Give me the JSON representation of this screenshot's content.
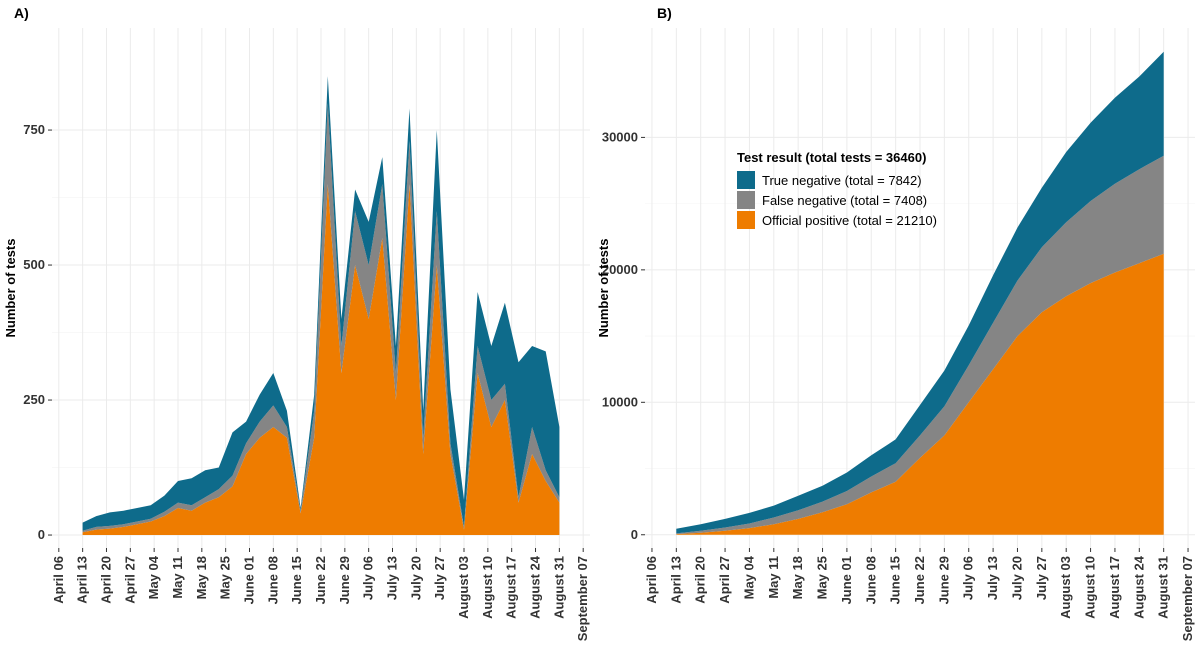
{
  "chart_data": [
    {
      "type": "area",
      "stacked": true,
      "title": "A)",
      "y_label": "Number of tests",
      "x": [
        "April 13",
        "April 17",
        "April 21",
        "April 25",
        "April 29",
        "May 03",
        "May 07",
        "May 11",
        "May 15",
        "May 19",
        "May 23",
        "May 27",
        "May 31",
        "June 04",
        "June 08",
        "June 12",
        "June 16",
        "June 20",
        "June 24",
        "June 28",
        "July 02",
        "July 06",
        "July 10",
        "July 14",
        "July 18",
        "July 22",
        "July 26",
        "July 30",
        "August 03",
        "August 07",
        "August 11",
        "August 15",
        "August 19",
        "August 23",
        "August 27",
        "August 31"
      ],
      "series": [
        {
          "color": "#0e6b8b",
          "values": [
            15,
            20,
            25,
            25,
            25,
            25,
            30,
            40,
            50,
            50,
            40,
            80,
            40,
            50,
            60,
            30,
            5,
            30,
            50,
            50,
            40,
            80,
            50,
            50,
            60,
            50,
            150,
            100,
            50,
            100,
            100,
            150,
            250,
            150,
            220,
            130
          ]
        },
        {
          "color": "#858585",
          "values": [
            3,
            5,
            5,
            5,
            5,
            5,
            8,
            10,
            10,
            10,
            15,
            20,
            20,
            30,
            40,
            20,
            5,
            50,
            150,
            50,
            100,
            100,
            100,
            50,
            80,
            30,
            100,
            20,
            5,
            50,
            50,
            30,
            10,
            50,
            20,
            10
          ]
        },
        {
          "color": "#ee7c00",
          "values": [
            5,
            10,
            12,
            15,
            20,
            25,
            35,
            50,
            45,
            60,
            70,
            90,
            150,
            180,
            200,
            180,
            40,
            180,
            650,
            300,
            500,
            400,
            550,
            250,
            650,
            150,
            500,
            150,
            10,
            300,
            200,
            250,
            60,
            150,
            100,
            60
          ]
        }
      ],
      "xlim": [
        "April 04",
        "September 09"
      ],
      "xticks": [
        "April 06",
        "April 13",
        "April 20",
        "April 27",
        "May 04",
        "May 11",
        "May 18",
        "May 25",
        "June 01",
        "June 08",
        "June 15",
        "June 22",
        "June 29",
        "July 06",
        "July 13",
        "July 20",
        "July 27",
        "August 03",
        "August 10",
        "August 17",
        "August 24",
        "August 31",
        "September 07"
      ],
      "ylim": [
        -24,
        939
      ],
      "yticks": [
        0,
        250,
        500,
        750
      ],
      "grid": true
    },
    {
      "type": "area",
      "stacked": true,
      "title": "B)",
      "y_label": "Number of tests",
      "legend_title": "Test result (total tests = 36460)",
      "x": [
        "April 13",
        "April 20",
        "April 27",
        "May 04",
        "May 11",
        "May 18",
        "May 25",
        "June 01",
        "June 08",
        "June 15",
        "June 22",
        "June 29",
        "July 06",
        "July 13",
        "July 20",
        "July 27",
        "August 03",
        "August 10",
        "August 17",
        "August 24",
        "August 31"
      ],
      "series": [
        {
          "name": "True negative (total = 7842)",
          "color": "#0e6b8b",
          "values": [
            350,
            500,
            650,
            800,
            900,
            1100,
            1200,
            1400,
            1600,
            1800,
            2300,
            2700,
            3000,
            3600,
            4000,
            4500,
            5300,
            5900,
            6500,
            7000,
            7842
          ]
        },
        {
          "name": "False negative (total = 7408)",
          "color": "#858585",
          "values": [
            50,
            150,
            250,
            350,
            500,
            650,
            800,
            1000,
            1200,
            1400,
            1700,
            2200,
            2800,
            3500,
            4200,
            4900,
            5600,
            6200,
            6700,
            7100,
            7408
          ]
        },
        {
          "name": "Official positive (total = 21210)",
          "color": "#ee7c00",
          "values": [
            50,
            150,
            300,
            500,
            800,
            1200,
            1700,
            2300,
            3200,
            4000,
            5800,
            7500,
            10000,
            12500,
            15000,
            16800,
            18000,
            19000,
            19800,
            20500,
            21210
          ]
        }
      ],
      "xlim": [
        "April 04",
        "September 09"
      ],
      "xticks": [
        "April 06",
        "April 13",
        "April 20",
        "April 27",
        "May 04",
        "May 11",
        "May 18",
        "May 25",
        "June 01",
        "June 08",
        "June 15",
        "June 22",
        "June 29",
        "July 06",
        "July 13",
        "July 20",
        "July 27",
        "August 03",
        "August 10",
        "August 17",
        "August 24",
        "August 31",
        "September 07"
      ],
      "ylim": [
        -1000,
        38260
      ],
      "yticks": [
        0,
        10000,
        20000,
        30000
      ],
      "grid": true
    }
  ]
}
